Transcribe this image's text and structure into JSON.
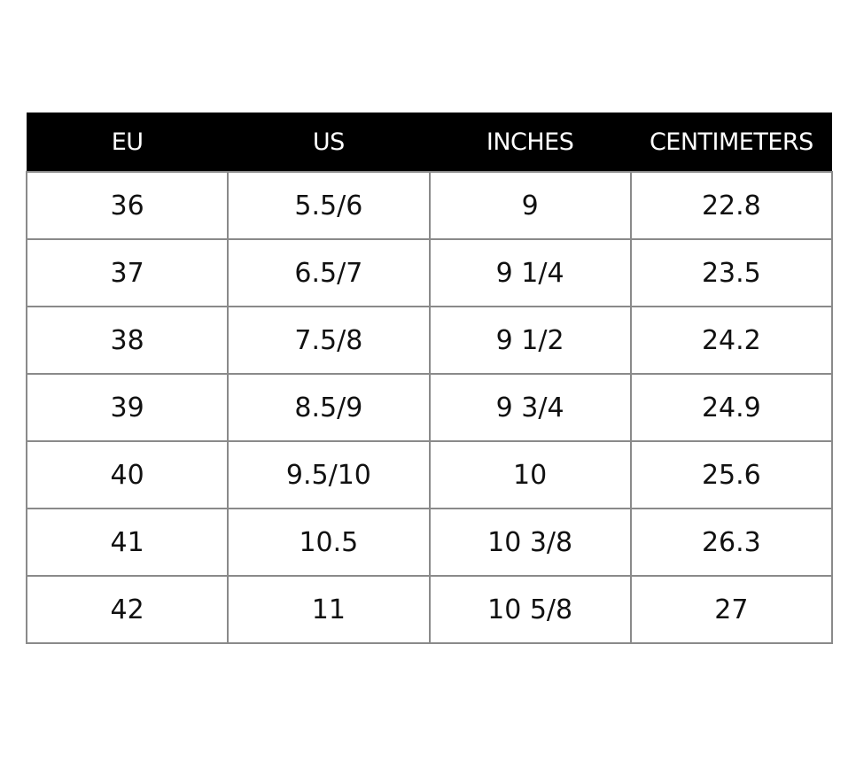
{
  "table": {
    "headers": [
      "EU",
      "US",
      "INCHES",
      "CENTIMETERS"
    ],
    "rows": [
      [
        "36",
        "5.5/6",
        "9",
        "22.8"
      ],
      [
        "37",
        "6.5/7",
        "9 1/4",
        "23.5"
      ],
      [
        "38",
        "7.5/8",
        "9 1/2",
        "24.2"
      ],
      [
        "39",
        "8.5/9",
        "9 3/4",
        "24.9"
      ],
      [
        "40",
        "9.5/10",
        "10",
        "25.6"
      ],
      [
        "41",
        "10.5",
        "10 3/8",
        "26.3"
      ],
      [
        "42",
        "11",
        "10 5/8",
        "27"
      ]
    ]
  }
}
